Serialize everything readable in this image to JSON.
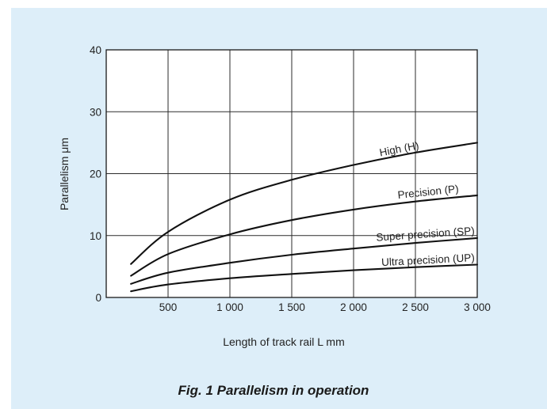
{
  "figure": {
    "caption": "Fig. 1 Parallelism in operation",
    "background": "#ddeef9"
  },
  "chart_data": {
    "type": "line",
    "xlabel": "Length of track rail L mm",
    "ylabel": "Parallelism μm",
    "xlim": [
      0,
      3000
    ],
    "ylim": [
      0,
      40
    ],
    "x_ticks": [
      500,
      1000,
      1500,
      2000,
      2500,
      3000
    ],
    "x_tick_labels": [
      "500",
      "1 000",
      "1 500",
      "2 000",
      "2 500",
      "3 000"
    ],
    "y_ticks": [
      0,
      10,
      20,
      30,
      40
    ],
    "y_tick_labels": [
      "0",
      "10",
      "20",
      "30",
      "40"
    ],
    "grid": true,
    "legend": "inline labels at curve ends",
    "series": [
      {
        "name": "High (H)",
        "x": [
          200,
          500,
          1000,
          1500,
          2000,
          2500,
          3000
        ],
        "values": [
          5.4,
          10.6,
          15.8,
          19.0,
          21.4,
          23.4,
          25.0
        ]
      },
      {
        "name": "Precision (P)",
        "x": [
          200,
          500,
          1000,
          1500,
          2000,
          2500,
          3000
        ],
        "values": [
          3.5,
          7.0,
          10.2,
          12.5,
          14.2,
          15.5,
          16.5
        ]
      },
      {
        "name": "Super precision (SP)",
        "x": [
          200,
          500,
          1000,
          1500,
          2000,
          2500,
          3000
        ],
        "values": [
          2.2,
          4.0,
          5.6,
          6.9,
          7.9,
          8.8,
          9.6
        ]
      },
      {
        "name": "Ultra precision (UP)",
        "x": [
          200,
          500,
          1000,
          1500,
          2000,
          2500,
          3000
        ],
        "values": [
          1.0,
          2.1,
          3.1,
          3.8,
          4.4,
          4.9,
          5.3
        ]
      }
    ]
  }
}
